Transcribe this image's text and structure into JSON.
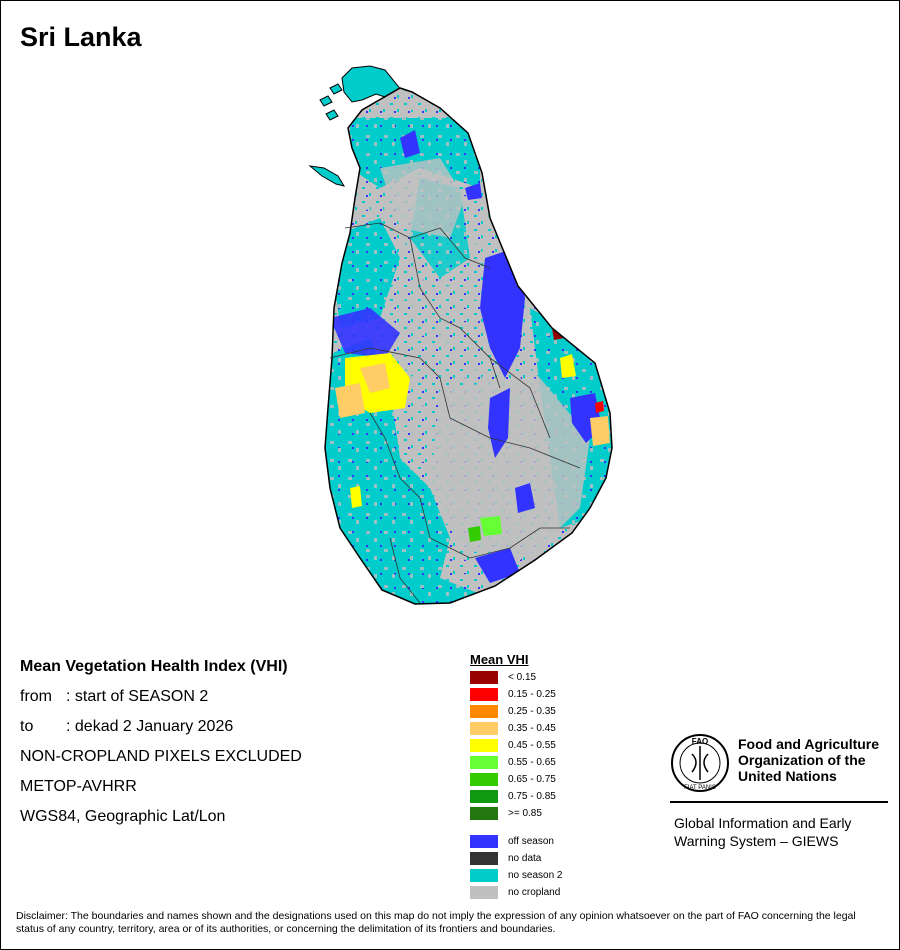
{
  "title": "Sri Lanka",
  "info": {
    "heading": "Mean Vegetation Health Index (VHI)",
    "from_label": "from",
    "from_value": ": start of SEASON 2",
    "to_label": "to",
    "to_value": ": dekad 2 January 2026",
    "line3": "NON-CROPLAND PIXELS EXCLUDED",
    "line4": "METOP-AVHRR",
    "line5": "WGS84, Geographic Lat/Lon"
  },
  "legend": {
    "title": "Mean VHI",
    "classes": [
      {
        "label": "< 0.15",
        "color": "#990000"
      },
      {
        "label": "0.15 - 0.25",
        "color": "#ff0000"
      },
      {
        "label": "0.25 - 0.35",
        "color": "#ff8800"
      },
      {
        "label": "0.35 - 0.45",
        "color": "#ffcc66"
      },
      {
        "label": "0.45 - 0.55",
        "color": "#ffff00"
      },
      {
        "label": "0.55 - 0.65",
        "color": "#66ff33"
      },
      {
        "label": "0.65 - 0.75",
        "color": "#33cc00"
      },
      {
        "label": "0.75 - 0.85",
        "color": "#119911"
      },
      {
        "label": ">= 0.85",
        "color": "#227711"
      }
    ],
    "special": [
      {
        "label": "off season",
        "color": "#3333ff"
      },
      {
        "label": "no data",
        "color": "#333333"
      },
      {
        "label": "no season 2",
        "color": "#00cccc"
      },
      {
        "label": "no cropland",
        "color": "#c0c0c0"
      }
    ]
  },
  "fao": {
    "emblem_letters": "FAO",
    "emblem_motto": "FIAT PANIS",
    "name_line1": "Food and Agriculture",
    "name_line2": "Organization of the",
    "name_line3": "United Nations",
    "giews_line1": "Global Information and Early",
    "giews_line2": "Warning System – GIEWS"
  },
  "disclaimer": "Disclaimer: The boundaries and names shown and the designations used on this map do not imply the expression of any opinion whatsoever on the part of FAO concerning the legal status of any country, territory, area or of its authorities, or concerning the delimitation of its frontiers and boundaries."
}
